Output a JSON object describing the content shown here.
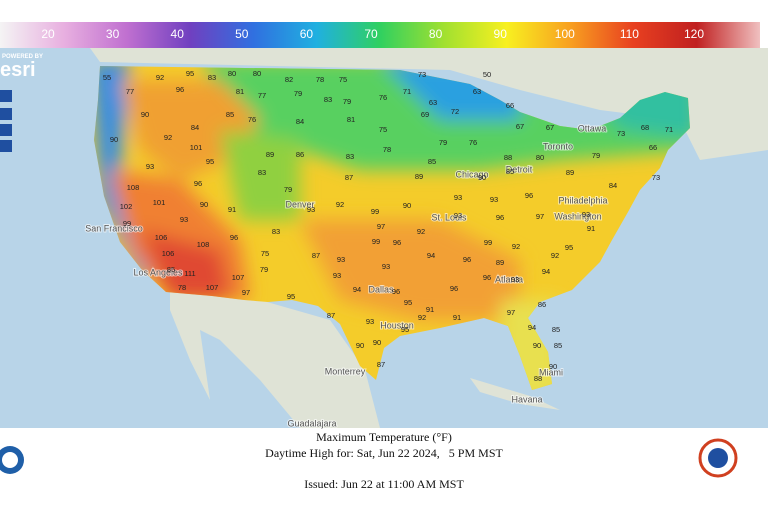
{
  "legend": {
    "ticks": [
      20,
      30,
      40,
      50,
      60,
      70,
      80,
      90,
      100,
      110,
      120
    ],
    "colors": [
      "#f4f4f4",
      "#e8b0e0",
      "#c070d0",
      "#7040c0",
      "#3070e0",
      "#20b0e0",
      "#30d060",
      "#a0e030",
      "#f8f020",
      "#f8a020",
      "#e84020",
      "#c02020",
      "#f0c0c0"
    ]
  },
  "map": {
    "attribution": "POWERED BY",
    "brand": "esri",
    "cities": [
      "San Francisco",
      "Los Angeles",
      "Denver",
      "Dallas",
      "Houston",
      "Chicago",
      "St. Louis",
      "Detroit",
      "Toronto",
      "Ottawa",
      "Philadelphia",
      "Washington",
      "Atlanta",
      "Miami",
      "Havana",
      "Monterrey",
      "Guadalajara"
    ],
    "temperatures": [
      55,
      92,
      95,
      83,
      80,
      80,
      82,
      78,
      75,
      73,
      50,
      77,
      96,
      81,
      77,
      79,
      83,
      79,
      76,
      71,
      63,
      63,
      90,
      84,
      85,
      76,
      84,
      81,
      75,
      69,
      72,
      66,
      67,
      67,
      73,
      68,
      71,
      90,
      92,
      101,
      89,
      86,
      83,
      78,
      85,
      79,
      76,
      88,
      80,
      79,
      66,
      93,
      95,
      83,
      79,
      87,
      89,
      90,
      85,
      89,
      84,
      73,
      108,
      96,
      93,
      92,
      99,
      90,
      93,
      93,
      96,
      102,
      101,
      90,
      91,
      97,
      93,
      97,
      93,
      91,
      99,
      93,
      83,
      92,
      96,
      106,
      108,
      96,
      99,
      96,
      99,
      92,
      95,
      106,
      75,
      87,
      93,
      94,
      96,
      92,
      94,
      85,
      111,
      107,
      79,
      93,
      89,
      96,
      93,
      78,
      107,
      97,
      93,
      94,
      96,
      95,
      96,
      91,
      95,
      87,
      93,
      92,
      91,
      97,
      86,
      90,
      95,
      94,
      85,
      87,
      90,
      90,
      85,
      90,
      88
    ]
  },
  "footer": {
    "title": "Maximum Temperature (°F)",
    "valid": "Daytime High for: Sat, Jun 22 2024,   5 PM MST",
    "issued": "Issued: Jun 22 at 11:00 AM MST"
  }
}
